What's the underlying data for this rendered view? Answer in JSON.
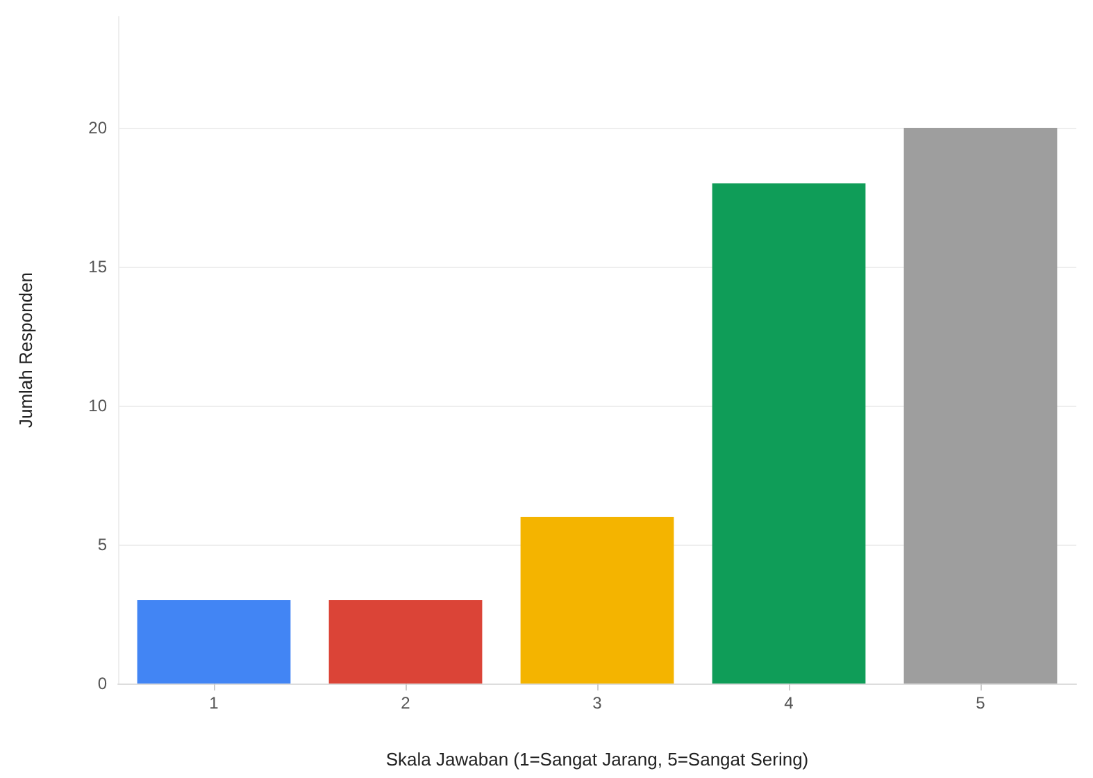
{
  "chart_data": {
    "type": "bar",
    "xlabel": "Skala Jawaban (1=Sangat Jarang, 5=Sangat Sering)",
    "ylabel": "Jumlah Responden",
    "categories": [
      "1",
      "2",
      "3",
      "4",
      "5"
    ],
    "values": [
      3,
      3,
      6,
      18,
      20
    ],
    "colors": [
      "#4285f4",
      "#db4437",
      "#f4b400",
      "#0f9d58",
      "#9e9e9e"
    ],
    "ylim": [
      0,
      24
    ],
    "yticks": [
      0,
      5,
      10,
      15,
      20
    ],
    "grid": "y"
  }
}
